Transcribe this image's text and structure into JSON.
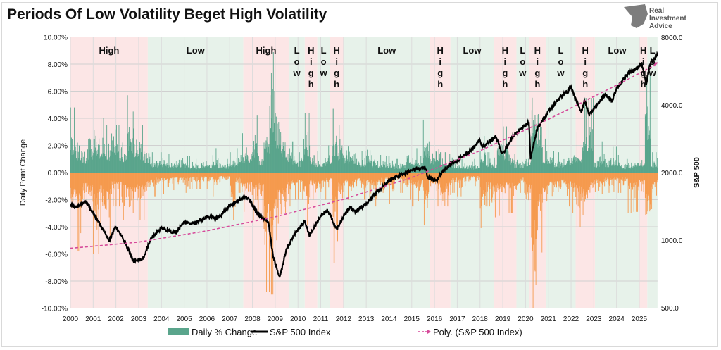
{
  "chart_data": {
    "type": "bar+line",
    "title": "Periods Of Low Volatility Beget High Volatility",
    "ylabel": "Daily Point Change",
    "y2label": "S&P 500",
    "ylim": [
      -10,
      10
    ],
    "y2lim": [
      500,
      8000
    ],
    "y2_scale": "log",
    "xlim": [
      2000,
      2025.8
    ],
    "grid": true,
    "legend_position": "bottom",
    "y_ticks": [
      "10.00%",
      "8.00%",
      "6.00%",
      "4.00%",
      "2.00%",
      "0.00%",
      "-2.00%",
      "-4.00%",
      "-6.00%",
      "-8.00%",
      "-10.00%"
    ],
    "y2_ticks": [
      "8000.0",
      "4000.0",
      "2000.0",
      "1000.0",
      "500.0"
    ],
    "x_ticks": [
      "2000",
      "2001",
      "2002",
      "2003",
      "2004",
      "2005",
      "2006",
      "2007",
      "2008",
      "2009",
      "2010",
      "2011",
      "2012",
      "2013",
      "2014",
      "2015",
      "2016",
      "2017",
      "2018",
      "2019",
      "2020",
      "2021",
      "2022",
      "2023",
      "2024",
      "2025"
    ],
    "legend": [
      "Daily % Change",
      "S&P 500 Index",
      "Poly. (S&P 500 Index)"
    ],
    "colors": {
      "up": "#5aa58c",
      "down": "#f59a4e",
      "index": "#000000",
      "trend": "#d64a9a",
      "high_band": "#fce6e6",
      "low_band": "#e7f2ea"
    },
    "regions": [
      {
        "label": "High",
        "from": 2000.0,
        "to": 2003.4,
        "vertical": false
      },
      {
        "label": "Low",
        "from": 2003.4,
        "to": 2007.6,
        "vertical": false
      },
      {
        "label": "High",
        "from": 2007.6,
        "to": 2009.6,
        "vertical": false
      },
      {
        "label": "Low",
        "from": 2009.6,
        "to": 2010.3,
        "vertical": true
      },
      {
        "label": "High",
        "from": 2010.3,
        "to": 2010.85,
        "vertical": true
      },
      {
        "label": "Low",
        "from": 2010.85,
        "to": 2011.4,
        "vertical": true
      },
      {
        "label": "High",
        "from": 2011.4,
        "to": 2012.0,
        "vertical": true
      },
      {
        "label": "Low",
        "from": 2012.0,
        "to": 2015.8,
        "vertical": false
      },
      {
        "label": "High",
        "from": 2015.8,
        "to": 2016.7,
        "vertical": true
      },
      {
        "label": "Low",
        "from": 2016.7,
        "to": 2018.6,
        "vertical": false
      },
      {
        "label": "High",
        "from": 2018.6,
        "to": 2019.6,
        "vertical": true
      },
      {
        "label": "Low",
        "from": 2019.6,
        "to": 2020.15,
        "vertical": true
      },
      {
        "label": "High",
        "from": 2020.15,
        "to": 2020.9,
        "vertical": true
      },
      {
        "label": "Low",
        "from": 2020.9,
        "to": 2022.2,
        "vertical": true
      },
      {
        "label": "High",
        "from": 2022.2,
        "to": 2023.05,
        "vertical": true
      },
      {
        "label": "Low",
        "from": 2023.05,
        "to": 2025.0,
        "vertical": false
      },
      {
        "label": "High",
        "from": 2025.0,
        "to": 2025.35,
        "vertical": false
      },
      {
        "label": "Low",
        "from": 2025.35,
        "to": 2025.8,
        "vertical": true
      }
    ],
    "daily_change_quarterly": {
      "start_year": 2000,
      "max_up": [
        4.8,
        3.5,
        2.5,
        3.8,
        5.0,
        4.0,
        3.5,
        4.8,
        3.5,
        3.0,
        5.7,
        4.5,
        3.5,
        2.7,
        1.5,
        1.5,
        1.6,
        1.4,
        1.2,
        1.5,
        1.2,
        1.0,
        1.0,
        1.4,
        1.2,
        1.8,
        1.1,
        1.0,
        1.5,
        1.8,
        2.9,
        2.8,
        4.2,
        2.0,
        5.5,
        11.6,
        7.0,
        4.0,
        3.0,
        2.3,
        1.5,
        4.4,
        2.0,
        1.6,
        1.5,
        2.0,
        4.7,
        3.5,
        2.5,
        2.5,
        2.0,
        1.6,
        2.5,
        1.5,
        1.3,
        1.2,
        1.2,
        1.0,
        1.1,
        2.0,
        1.8,
        1.2,
        3.9,
        2.3,
        2.5,
        1.5,
        1.4,
        1.1,
        1.0,
        1.0,
        0.8,
        1.0,
        2.7,
        1.5,
        1.1,
        5.0,
        3.4,
        2.1,
        1.4,
        1.3,
        1.5,
        9.3,
        7.0,
        2.5,
        2.4,
        1.5,
        1.5,
        2.0,
        2.5,
        3.0,
        5.5,
        5.5,
        1.5,
        2.3,
        1.5,
        1.9,
        1.3,
        1.0,
        1.1,
        1.6,
        1.6,
        9.5,
        1.5,
        1.5
      ],
      "max_down": [
        -4.0,
        -5.8,
        -3.0,
        -3.5,
        -6.0,
        -3.8,
        -4.9,
        -2.5,
        -2.5,
        -3.5,
        -4.2,
        -3.0,
        -3.5,
        -2.3,
        -1.8,
        -1.5,
        -1.6,
        -1.5,
        -1.3,
        -1.2,
        -1.5,
        -1.2,
        -1.2,
        -1.1,
        -1.2,
        -1.8,
        -1.0,
        -1.1,
        -3.5,
        -1.5,
        -2.9,
        -2.8,
        -3.5,
        -3.0,
        -8.8,
        -9.0,
        -5.0,
        -4.5,
        -2.5,
        -2.0,
        -2.0,
        -3.9,
        -2.0,
        -2.0,
        -2.0,
        -1.5,
        -6.7,
        -3.0,
        -2.0,
        -2.5,
        -1.6,
        -2.0,
        -2.0,
        -2.5,
        -1.5,
        -1.3,
        -2.3,
        -1.0,
        -1.5,
        -2.0,
        -2.5,
        -2.1,
        -3.9,
        -2.0,
        -2.5,
        -3.6,
        -2.5,
        -1.5,
        -1.8,
        -1.0,
        -1.0,
        -1.0,
        -4.1,
        -2.5,
        -3.3,
        -3.2,
        -2.8,
        -3.0,
        -2.9,
        -1.5,
        -3.4,
        -12.0,
        -5.9,
        -3.5,
        -2.6,
        -2.5,
        -2.0,
        -2.5,
        -3.0,
        -4.0,
        -4.3,
        -2.8,
        -1.9,
        -1.6,
        -1.5,
        -1.4,
        -1.5,
        -1.3,
        -3.0,
        -2.9,
        -2.1,
        -6.0,
        -2.7,
        -1.7
      ]
    },
    "sp500_index": [
      [
        2000,
        1450
      ],
      [
        2000.2,
        1400
      ],
      [
        2000.7,
        1480
      ],
      [
        2001.0,
        1320
      ],
      [
        2001.3,
        1180
      ],
      [
        2001.7,
        1000
      ],
      [
        2002.0,
        1150
      ],
      [
        2002.5,
        930
      ],
      [
        2002.8,
        800
      ],
      [
        2003.2,
        830
      ],
      [
        2003.5,
        1000
      ],
      [
        2004.0,
        1130
      ],
      [
        2004.6,
        1080
      ],
      [
        2005.0,
        1200
      ],
      [
        2005.5,
        1190
      ],
      [
        2006.0,
        1270
      ],
      [
        2006.5,
        1250
      ],
      [
        2007.0,
        1430
      ],
      [
        2007.5,
        1520
      ],
      [
        2007.8,
        1550
      ],
      [
        2008.2,
        1320
      ],
      [
        2008.7,
        1200
      ],
      [
        2008.9,
        850
      ],
      [
        2009.2,
        680
      ],
      [
        2009.5,
        920
      ],
      [
        2010.0,
        1120
      ],
      [
        2010.3,
        1210
      ],
      [
        2010.5,
        1050
      ],
      [
        2011.0,
        1280
      ],
      [
        2011.3,
        1360
      ],
      [
        2011.7,
        1120
      ],
      [
        2012.0,
        1280
      ],
      [
        2012.3,
        1400
      ],
      [
        2012.5,
        1330
      ],
      [
        2013.0,
        1450
      ],
      [
        2013.5,
        1650
      ],
      [
        2014.0,
        1850
      ],
      [
        2014.5,
        1950
      ],
      [
        2015.0,
        2050
      ],
      [
        2015.6,
        2100
      ],
      [
        2015.7,
        1900
      ],
      [
        2016.1,
        1860
      ],
      [
        2016.5,
        2100
      ],
      [
        2017.0,
        2270
      ],
      [
        2017.5,
        2450
      ],
      [
        2018.0,
        2800
      ],
      [
        2018.1,
        2600
      ],
      [
        2018.7,
        2900
      ],
      [
        2018.98,
        2400
      ],
      [
        2019.5,
        2950
      ],
      [
        2020.0,
        3250
      ],
      [
        2020.15,
        3380
      ],
      [
        2020.22,
        2300
      ],
      [
        2020.5,
        3100
      ],
      [
        2021.0,
        3750
      ],
      [
        2021.5,
        4300
      ],
      [
        2022.0,
        4770
      ],
      [
        2022.45,
        3700
      ],
      [
        2022.6,
        4200
      ],
      [
        2022.8,
        3600
      ],
      [
        2023.0,
        3850
      ],
      [
        2023.5,
        4450
      ],
      [
        2023.8,
        4150
      ],
      [
        2024.0,
        4770
      ],
      [
        2024.5,
        5500
      ],
      [
        2025.0,
        5900
      ],
      [
        2025.1,
        6100
      ],
      [
        2025.3,
        4980
      ],
      [
        2025.5,
        6200
      ],
      [
        2025.8,
        6700
      ]
    ],
    "poly_trend": [
      [
        2000,
        920
      ],
      [
        2003,
        980
      ],
      [
        2006,
        1100
      ],
      [
        2009,
        1270
      ],
      [
        2012,
        1520
      ],
      [
        2015,
        1900
      ],
      [
        2018,
        2500
      ],
      [
        2021,
        3450
      ],
      [
        2024,
        4900
      ],
      [
        2025.8,
        6100
      ]
    ]
  },
  "logo": {
    "text": [
      "Real",
      "Investment",
      "Advice"
    ]
  }
}
